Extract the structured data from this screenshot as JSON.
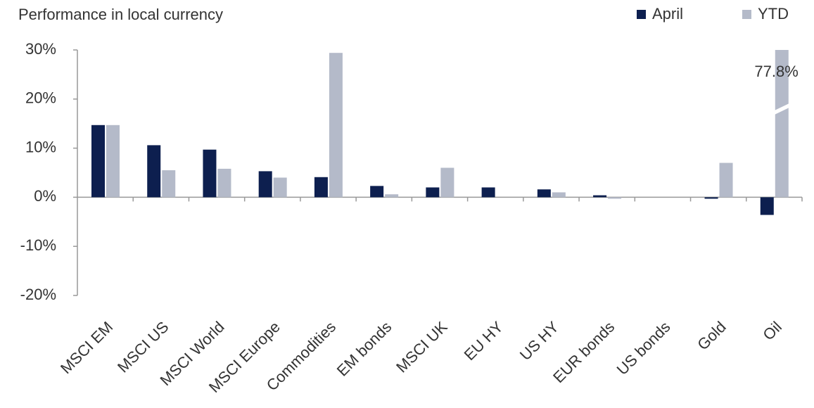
{
  "chart_data": {
    "type": "bar",
    "title": "Performance in local currency",
    "categories": [
      "MSCI EM",
      "MSCI US",
      "MSCI World",
      "MSCI Europe",
      "Commodities",
      "EM bonds",
      "MSCI UK",
      "EU HY",
      "US HY",
      "EUR bonds",
      "US bonds",
      "Gold",
      "Oil"
    ],
    "series": [
      {
        "name": "April",
        "color": "#0d1f4f",
        "values": [
          14.7,
          10.6,
          9.7,
          5.3,
          4.1,
          2.3,
          2.0,
          2.0,
          1.6,
          0.4,
          0.0,
          -0.3,
          -3.6
        ]
      },
      {
        "name": "YTD",
        "color": "#b4bac9",
        "values": [
          14.7,
          5.5,
          5.8,
          4.0,
          29.4,
          0.6,
          6.0,
          0.0,
          1.0,
          -0.3,
          0.0,
          7.0,
          77.8
        ],
        "value_labels": [
          null,
          null,
          null,
          null,
          null,
          null,
          null,
          null,
          null,
          null,
          null,
          null,
          "77.8%"
        ]
      }
    ],
    "ylim": [
      -20,
      30
    ],
    "yticks": [
      {
        "value": -20,
        "label": "-20%"
      },
      {
        "value": -10,
        "label": "-10%"
      },
      {
        "value": 0,
        "label": "0%"
      },
      {
        "value": 10,
        "label": "10%"
      },
      {
        "value": 20,
        "label": "20%"
      },
      {
        "value": 30,
        "label": "30%"
      }
    ],
    "legend": "top-right",
    "grid": false
  }
}
